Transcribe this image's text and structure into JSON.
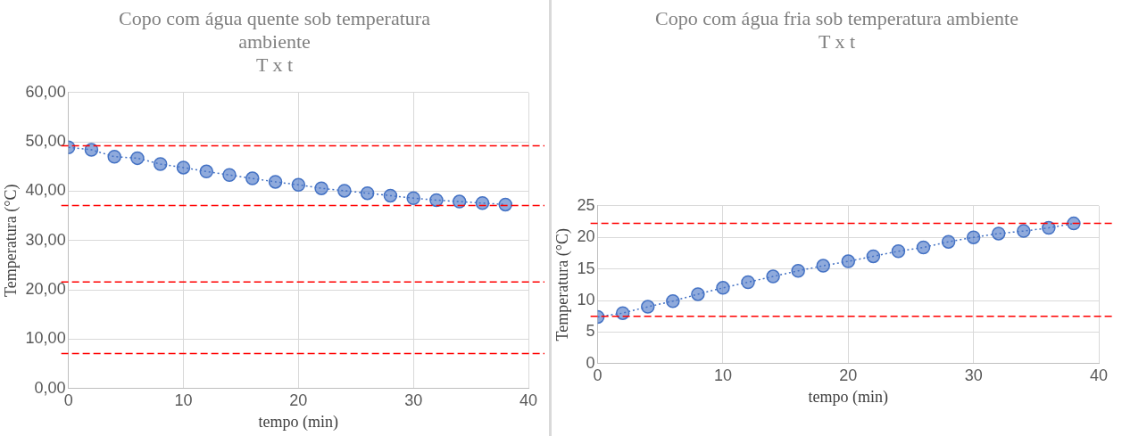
{
  "chart_data": [
    {
      "type": "line",
      "title": "Copo com água quente sob temperatura ambiente",
      "subtitle": "T x t",
      "xlabel": "tempo (min)",
      "ylabel": "Temperatura (°C)",
      "x": [
        0,
        2,
        4,
        6,
        8,
        10,
        12,
        14,
        16,
        18,
        20,
        22,
        24,
        26,
        28,
        30,
        32,
        34,
        36,
        38
      ],
      "series": [
        {
          "color": "#4472c4",
          "values": [
            48.9,
            48.4,
            47.0,
            46.7,
            45.5,
            44.8,
            44.0,
            43.3,
            42.6,
            41.9,
            41.3,
            40.6,
            40.1,
            39.6,
            39.1,
            38.6,
            38.2,
            37.9,
            37.6,
            37.3
          ]
        }
      ],
      "xlim": [
        0,
        40
      ],
      "xticks": [
        0,
        10,
        20,
        30,
        40
      ],
      "ylim": [
        0,
        60
      ],
      "yticks": [
        {
          "value": 0,
          "label": "0,00"
        },
        {
          "value": 10,
          "label": "10,00"
        },
        {
          "value": 20,
          "label": "20,00"
        },
        {
          "value": 30,
          "label": "30,00"
        },
        {
          "value": 40,
          "label": "40,00"
        },
        {
          "value": 50,
          "label": "50,00"
        },
        {
          "value": 60,
          "label": "60,00"
        }
      ],
      "ref_lines": [
        {
          "axis": "y",
          "value": 49.2,
          "color": "#ff0000",
          "line_style": "dashed"
        },
        {
          "axis": "y",
          "value": 37.1,
          "color": "#ff0000",
          "line_style": "dashed"
        },
        {
          "axis": "y",
          "value": 21.6,
          "color": "#ff0000",
          "line_style": "dashed"
        },
        {
          "axis": "y",
          "value": 7.1,
          "color": "#ff0000",
          "line_style": "dashed"
        }
      ],
      "grid": true,
      "legend": false,
      "marker": "circle",
      "line_style": "dotted"
    },
    {
      "type": "line",
      "title": "Copo com água fria sob temperatura ambiente",
      "subtitle": "T x t",
      "xlabel": "tempo (min)",
      "ylabel": "Temperatura (°C)",
      "x": [
        0,
        2,
        4,
        6,
        8,
        10,
        12,
        14,
        16,
        18,
        20,
        22,
        24,
        26,
        28,
        30,
        32,
        34,
        36,
        38
      ],
      "series": [
        {
          "color": "#4472c4",
          "values": [
            7.4,
            8.0,
            9.0,
            9.9,
            11.0,
            12.0,
            12.9,
            13.8,
            14.7,
            15.5,
            16.2,
            17.0,
            17.8,
            18.4,
            19.3,
            20.0,
            20.6,
            21.0,
            21.5,
            22.2
          ]
        }
      ],
      "xlim": [
        0,
        40
      ],
      "xticks": [
        0,
        10,
        20,
        30,
        40
      ],
      "ylim": [
        0,
        25
      ],
      "yticks": [
        0,
        5,
        10,
        15,
        20,
        25
      ],
      "ref_lines": [
        {
          "axis": "y",
          "value": 22.2,
          "color": "#ff0000",
          "line_style": "dashed"
        },
        {
          "axis": "y",
          "value": 7.5,
          "color": "#ff0000",
          "line_style": "dashed"
        }
      ],
      "grid": true,
      "legend": false,
      "marker": "circle",
      "line_style": "dotted"
    }
  ]
}
